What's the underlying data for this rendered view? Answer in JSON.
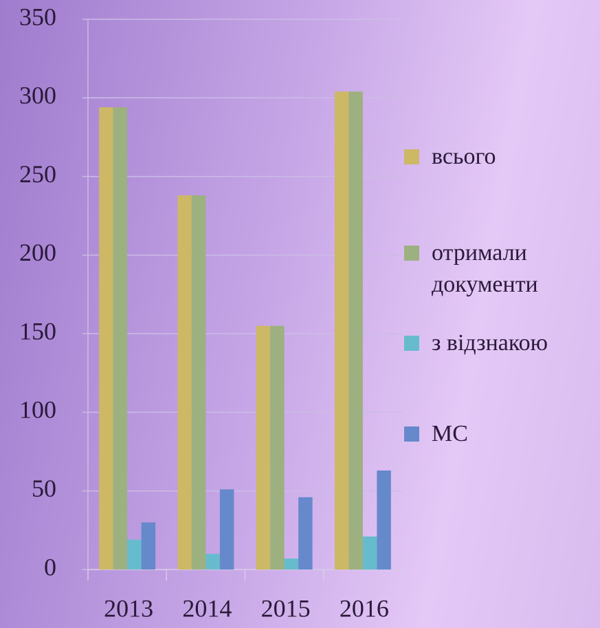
{
  "chart_data": {
    "type": "bar",
    "categories": [
      "2013",
      "2014",
      "2015",
      "2016"
    ],
    "series": [
      {
        "name": "всього",
        "color": "#cdb866",
        "values": [
          294,
          238,
          155,
          304
        ]
      },
      {
        "name": "отримали документи",
        "color": "#9db080",
        "values": [
          294,
          238,
          155,
          304
        ]
      },
      {
        "name": "з відзнакою",
        "color": "#66bccc",
        "values": [
          19,
          10,
          7,
          21
        ]
      },
      {
        "name": "МС",
        "color": "#6689cc",
        "values": [
          30,
          51,
          46,
          63
        ]
      }
    ],
    "ylim": [
      0,
      350
    ],
    "yticks": [
      0,
      50,
      100,
      150,
      200,
      250,
      300,
      350
    ],
    "grid": true,
    "legend": "right"
  }
}
